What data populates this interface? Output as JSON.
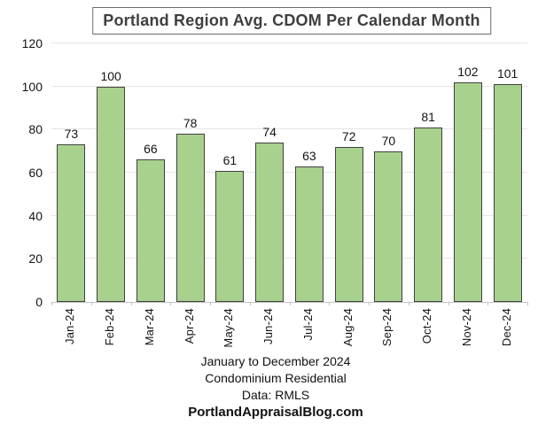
{
  "title": "Portland Region Avg. CDOM Per Calendar Month",
  "chart_data": {
    "type": "bar",
    "title": "Portland Region Avg. CDOM Per Calendar Month",
    "categories": [
      "Jan-24",
      "Feb-24",
      "Mar-24",
      "Apr-24",
      "May-24",
      "Jun-24",
      "Jul-24",
      "Aug-24",
      "Sep-24",
      "Oct-24",
      "Nov-24",
      "Dec-24"
    ],
    "values": [
      73,
      100,
      66,
      78,
      61,
      74,
      63,
      72,
      70,
      81,
      102,
      101
    ],
    "xlabel": "",
    "ylabel": "",
    "ylim": [
      0,
      120
    ],
    "ytick_step": 20,
    "yticks": [
      0,
      20,
      40,
      60,
      80,
      100,
      120
    ],
    "grid": true,
    "legend": "none",
    "data_labels": true,
    "bar_fill": "#A9D18E",
    "bar_border": "#404040",
    "gridline_color": "#e5e5e5",
    "axis_color": "#c3c3c3"
  },
  "footer": {
    "lines": [
      "January to December 2024",
      "Condominium Residential",
      "Data: RMLS",
      "PortlandAppraisalBlog.com"
    ]
  }
}
